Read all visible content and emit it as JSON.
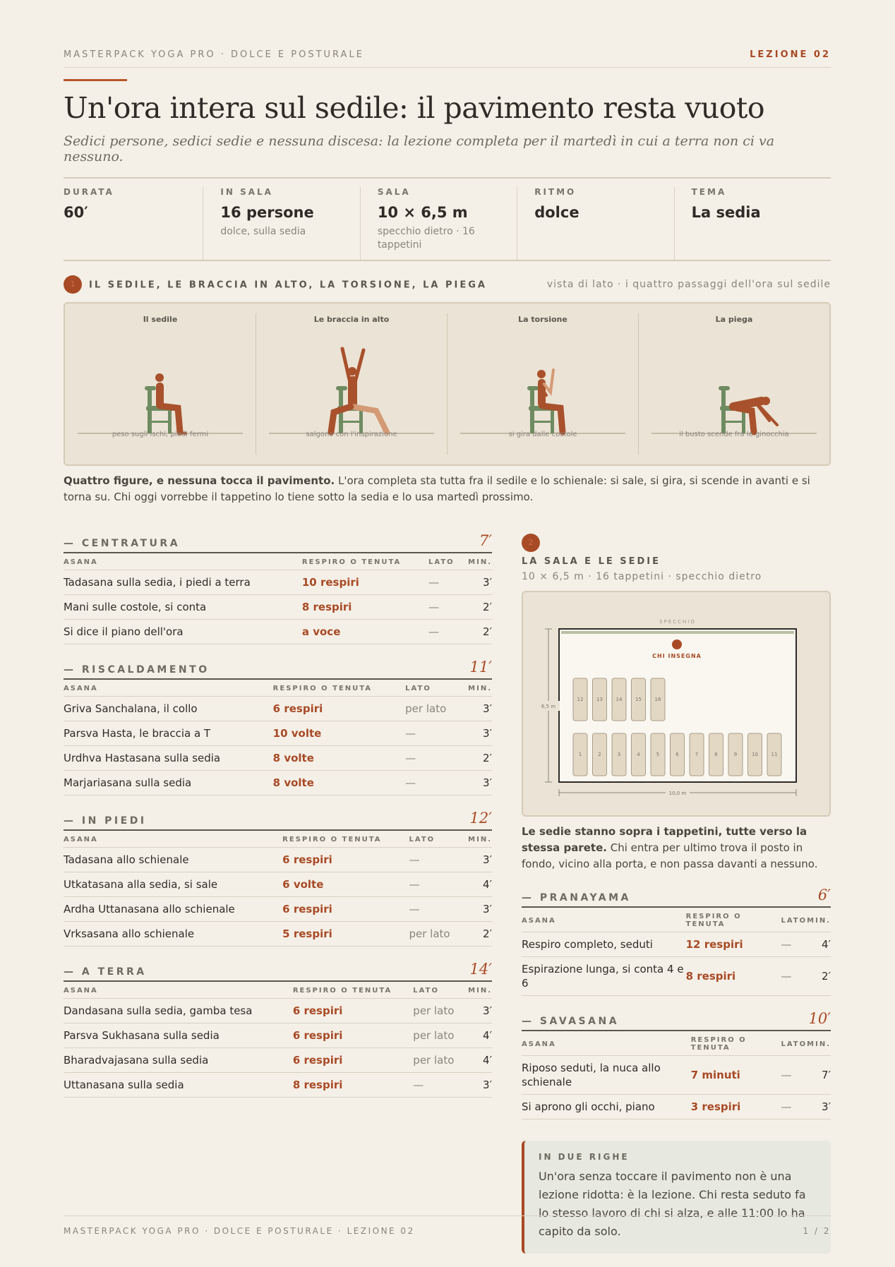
{
  "header": {
    "brand": "MASTERPACK YOGA PRO · DOLCE E POSTURALE",
    "lesson": "LEZIONE 02"
  },
  "title": "Un'ora intera sul sedile: il pavimento resta vuoto",
  "subtitle": "Sedici persone, sedici sedie e nessuna discesa: la lezione completa per il martedì in cui a terra non ci va nessuno.",
  "stats": [
    {
      "label": "DURATA",
      "value": "60′"
    },
    {
      "label": "IN SALA",
      "value": "16 persone",
      "note": "dolce, sulla sedia"
    },
    {
      "label": "SALA",
      "value": "10 × 6,5 m",
      "note": "specchio dietro · 16 tappetini"
    },
    {
      "label": "RITMO",
      "value": "dolce"
    },
    {
      "label": "TEMA",
      "value": "La sedia"
    }
  ],
  "section1": {
    "number": "1",
    "title": "IL SEDILE, LE BRACCIA IN ALTO, LA TORSIONE, LA PIEGA",
    "aside": "vista di lato · i quattro passaggi dell'ora sul sedile",
    "figures": [
      {
        "title": "Il sedile",
        "caption": "peso sugli ischi, piedi fermi"
      },
      {
        "title": "Le braccia in alto",
        "caption": "salgono con l'inspirazione"
      },
      {
        "title": "La torsione",
        "caption": "si gira dalle costole"
      },
      {
        "title": "La piega",
        "caption": "il busto scende fra le ginocchia"
      }
    ],
    "note_bold": "Quattro figure, e nessuna tocca il pavimento.",
    "note_text": " L'ora completa sta tutta fra il sedile e lo schienale: si sale, si gira, si scende in avanti e si torna su. Chi oggi vorrebbe il tappetino lo tiene sotto la sedia e lo usa martedì prossimo."
  },
  "left_sequences": [
    {
      "name": "— CENTRATURA",
      "minutes": "7′",
      "columns": [
        "ASANA",
        "RESPIRO O TENUTA",
        "LATO",
        "MIN."
      ],
      "rows": [
        [
          "Tadasana sulla sedia, i piedi a terra",
          "10 respiri",
          "—",
          "3′"
        ],
        [
          "Mani sulle costole, si conta",
          "8 respiri",
          "—",
          "2′"
        ],
        [
          "Si dice il piano dell'ora",
          "a voce",
          "—",
          "2′"
        ]
      ]
    },
    {
      "name": "— RISCALDAMENTO",
      "minutes": "11′",
      "columns": [
        "ASANA",
        "RESPIRO O TENUTA",
        "LATO",
        "MIN."
      ],
      "rows": [
        [
          "Griva Sanchalana, il collo",
          "6 respiri",
          "per lato",
          "3′"
        ],
        [
          "Parsva Hasta, le braccia a T",
          "10 volte",
          "—",
          "3′"
        ],
        [
          "Urdhva Hastasana sulla sedia",
          "8 volte",
          "—",
          "2′"
        ],
        [
          "Marjariasana sulla sedia",
          "8 volte",
          "—",
          "3′"
        ]
      ]
    },
    {
      "name": "— IN PIEDI",
      "minutes": "12′",
      "columns": [
        "ASANA",
        "RESPIRO O TENUTA",
        "LATO",
        "MIN."
      ],
      "rows": [
        [
          "Tadasana allo schienale",
          "6 respiri",
          "—",
          "3′"
        ],
        [
          "Utkatasana alla sedia, si sale",
          "6 volte",
          "—",
          "4′"
        ],
        [
          "Ardha Uttanasana allo schienale",
          "6 respiri",
          "—",
          "3′"
        ],
        [
          "Vrksasana allo schienale",
          "5 respiri",
          "per lato",
          "2′"
        ]
      ]
    },
    {
      "name": "— A TERRA",
      "minutes": "14′",
      "columns": [
        "ASANA",
        "RESPIRO O TENUTA",
        "LATO",
        "MIN."
      ],
      "rows": [
        [
          "Dandasana sulla sedia, gamba tesa",
          "6 respiri",
          "per lato",
          "3′"
        ],
        [
          "Parsva Sukhasana sulla sedia",
          "6 respiri",
          "per lato",
          "4′"
        ],
        [
          "Bharadvajasana sulla sedia",
          "6 respiri",
          "per lato",
          "4′"
        ],
        [
          "Uttanasana sulla sedia",
          "8 respiri",
          "—",
          "3′"
        ]
      ]
    }
  ],
  "section2": {
    "number": "2",
    "title": "LA SALA E LE SEDIE",
    "subtitle": "10 × 6,5 m · 16 tappetini · specchio dietro",
    "mirror": "SPECCHIO",
    "teacher": "CHI INSEGNA",
    "height": "6,5 m",
    "width": "10,0 m",
    "back_row": [
      12,
      13,
      14,
      15,
      16
    ],
    "front_row": [
      1,
      2,
      3,
      4,
      5,
      6,
      7,
      8,
      9,
      10,
      11
    ],
    "note_bold": "Le sedie stanno sopra i tappetini, tutte verso la stessa parete.",
    "note_text": " Chi entra per ultimo trova il posto in fondo, vicino alla porta, e non passa davanti a nessuno."
  },
  "right_sequences": [
    {
      "name": "— PRANAYAMA",
      "minutes": "6′",
      "columns": [
        "ASANA",
        "RESPIRO O TENUTA",
        "LATO",
        "MIN."
      ],
      "rows": [
        [
          "Respiro completo, seduti",
          "12 respiri",
          "—",
          "4′"
        ],
        [
          "Espirazione lunga, si conta 4 e 6",
          "8 respiri",
          "—",
          "2′"
        ]
      ]
    },
    {
      "name": "— SAVASANA",
      "minutes": "10′",
      "columns": [
        "ASANA",
        "RESPIRO O TENUTA",
        "LATO",
        "MIN."
      ],
      "rows": [
        [
          "Riposo seduti, la nuca allo schienale",
          "7 minuti",
          "—",
          "7′"
        ],
        [
          "Si aprono gli occhi, piano",
          "3 respiri",
          "—",
          "3′"
        ]
      ]
    }
  ],
  "summary": {
    "label": "IN DUE RIGHE",
    "text": "Un'ora senza toccare il pavimento non è una lezione ridotta: è la lezione. Chi resta seduto fa lo stesso lavoro di chi si alza, e alle 11:00 lo ha capito da solo."
  },
  "footer": {
    "left": "MASTERPACK YOGA PRO · DOLCE E POSTURALE · LEZIONE 02",
    "right": "1 / 2"
  }
}
